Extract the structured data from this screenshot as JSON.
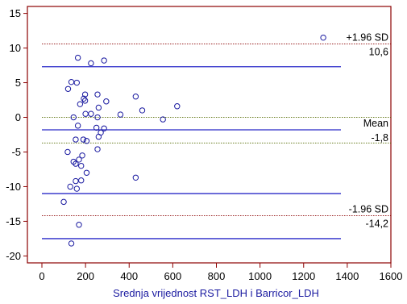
{
  "chart_data": {
    "type": "scatter",
    "xlabel": "Srednja vrijednost RST_LDH i Barricor_LDH",
    "ylabel": "",
    "xlim": [
      0,
      1600
    ],
    "ylim": [
      -21,
      16
    ],
    "xticks": [
      0,
      200,
      400,
      600,
      800,
      1000,
      1200,
      1400,
      1600
    ],
    "yticks": [
      -20,
      -15,
      -10,
      -5,
      0,
      5,
      10,
      15
    ],
    "grid": false,
    "colors": {
      "frame": "#8b0000",
      "line": "#2828c8",
      "points": "#1a1aa0",
      "mean": "#556b00",
      "sd": "#8b0000"
    },
    "reference_lines": [
      {
        "label": "+1.96 SD",
        "value_label": "10,6",
        "y": 10.6,
        "style": "dotted",
        "color": "#8b0000"
      },
      {
        "label": "",
        "value_label": "",
        "y": 7.3,
        "style": "solid",
        "color": "#2828c8"
      },
      {
        "label": "",
        "value_label": "",
        "y": 0,
        "style": "dotted",
        "color": "#556b00"
      },
      {
        "label": "Mean",
        "value_label": "-1,8",
        "y": -1.8,
        "style": "solid",
        "color": "#2828c8"
      },
      {
        "label": "",
        "value_label": "",
        "y": -3.7,
        "style": "dotted",
        "color": "#556b00"
      },
      {
        "label": "",
        "value_label": "",
        "y": -11.0,
        "style": "solid",
        "color": "#2828c8"
      },
      {
        "label": "-1.96 SD",
        "value_label": "-14,2",
        "y": -14.2,
        "style": "dotted",
        "color": "#8b0000"
      },
      {
        "label": "",
        "value_label": "",
        "y": -17.5,
        "style": "solid",
        "color": "#2828c8"
      }
    ],
    "points": [
      {
        "x": 1290,
        "y": 11.5
      },
      {
        "x": 165,
        "y": 8.6
      },
      {
        "x": 225,
        "y": 7.8
      },
      {
        "x": 285,
        "y": 8.2
      },
      {
        "x": 135,
        "y": 5.1
      },
      {
        "x": 160,
        "y": 5.0
      },
      {
        "x": 120,
        "y": 4.1
      },
      {
        "x": 198,
        "y": 3.3
      },
      {
        "x": 255,
        "y": 3.3
      },
      {
        "x": 430,
        "y": 3.0
      },
      {
        "x": 192,
        "y": 2.7
      },
      {
        "x": 198,
        "y": 2.4
      },
      {
        "x": 295,
        "y": 2.3
      },
      {
        "x": 175,
        "y": 1.9
      },
      {
        "x": 260,
        "y": 1.4
      },
      {
        "x": 620,
        "y": 1.6
      },
      {
        "x": 460,
        "y": 1.0
      },
      {
        "x": 200,
        "y": 0.5
      },
      {
        "x": 225,
        "y": 0.5
      },
      {
        "x": 360,
        "y": 0.4
      },
      {
        "x": 145,
        "y": 0.0
      },
      {
        "x": 255,
        "y": 0.0
      },
      {
        "x": 555,
        "y": -0.3
      },
      {
        "x": 165,
        "y": -1.2
      },
      {
        "x": 250,
        "y": -1.5
      },
      {
        "x": 285,
        "y": -1.6
      },
      {
        "x": 270,
        "y": -2.2
      },
      {
        "x": 260,
        "y": -2.8
      },
      {
        "x": 155,
        "y": -3.2
      },
      {
        "x": 190,
        "y": -3.2
      },
      {
        "x": 205,
        "y": -3.4
      },
      {
        "x": 255,
        "y": -4.6
      },
      {
        "x": 118,
        "y": -5.0
      },
      {
        "x": 185,
        "y": -5.5
      },
      {
        "x": 170,
        "y": -6.1
      },
      {
        "x": 145,
        "y": -6.4
      },
      {
        "x": 155,
        "y": -6.7
      },
      {
        "x": 180,
        "y": -7.0
      },
      {
        "x": 205,
        "y": -8.0
      },
      {
        "x": 430,
        "y": -8.7
      },
      {
        "x": 180,
        "y": -9.1
      },
      {
        "x": 155,
        "y": -9.2
      },
      {
        "x": 130,
        "y": -10.0
      },
      {
        "x": 160,
        "y": -10.3
      },
      {
        "x": 100,
        "y": -12.2
      },
      {
        "x": 170,
        "y": -15.5
      },
      {
        "x": 135,
        "y": -18.2
      }
    ]
  }
}
